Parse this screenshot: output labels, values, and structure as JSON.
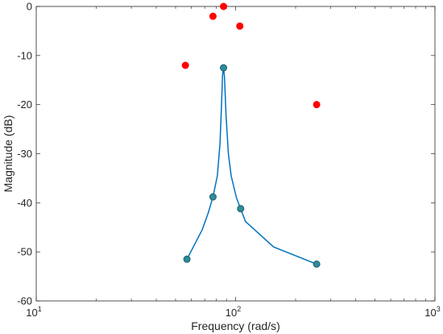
{
  "chart_data": {
    "type": "scatter",
    "xlabel": "Frequency (rad/s)",
    "ylabel": "Magnitude (dB)",
    "xscale": "log",
    "xlim": [
      10,
      1000
    ],
    "ylim": [
      -60,
      0
    ],
    "x_ticks": [
      {
        "value": 10,
        "base": "10",
        "exp": "1"
      },
      {
        "value": 100,
        "base": "10",
        "exp": "2"
      },
      {
        "value": 1000,
        "base": "10",
        "exp": "3"
      }
    ],
    "y_ticks": [
      {
        "value": 0,
        "label": "0"
      },
      {
        "value": -10,
        "label": "-10"
      },
      {
        "value": -20,
        "label": "-20"
      },
      {
        "value": -30,
        "label": "-30"
      },
      {
        "value": -40,
        "label": "-40"
      },
      {
        "value": -50,
        "label": "-50"
      },
      {
        "value": -60,
        "label": "-60"
      }
    ],
    "grid": false,
    "series": [
      {
        "kind": "line",
        "color": "#0072bd",
        "points": [
          {
            "x": 57,
            "y": -51.5
          },
          {
            "x": 68,
            "y": -45.5
          },
          {
            "x": 73,
            "y": -42
          },
          {
            "x": 77,
            "y": -38.8
          },
          {
            "x": 81,
            "y": -34.5
          },
          {
            "x": 83.5,
            "y": -28
          },
          {
            "x": 85,
            "y": -20
          },
          {
            "x": 86,
            "y": -14
          },
          {
            "x": 87,
            "y": -12.5
          },
          {
            "x": 88,
            "y": -14.5
          },
          {
            "x": 89.5,
            "y": -22
          },
          {
            "x": 92,
            "y": -30
          },
          {
            "x": 95,
            "y": -34.5
          },
          {
            "x": 101,
            "y": -39
          },
          {
            "x": 106,
            "y": -41.2
          },
          {
            "x": 112,
            "y": -43.8
          },
          {
            "x": 155,
            "y": -49
          },
          {
            "x": 255,
            "y": -52.5
          }
        ]
      },
      {
        "kind": "markers",
        "color": "#2e8b9a",
        "edge": "#1f5f6e",
        "points": [
          {
            "x": 57,
            "y": -51.5
          },
          {
            "x": 77,
            "y": -38.8
          },
          {
            "x": 87,
            "y": -12.5
          },
          {
            "x": 106,
            "y": -41.2
          },
          {
            "x": 255,
            "y": -52.5
          }
        ]
      },
      {
        "kind": "markers",
        "color": "#ff0000",
        "edge": "#ff0000",
        "points": [
          {
            "x": 56,
            "y": -12
          },
          {
            "x": 77,
            "y": -2
          },
          {
            "x": 87,
            "y": 0
          },
          {
            "x": 105,
            "y": -4
          },
          {
            "x": 255,
            "y": -20
          }
        ]
      }
    ]
  }
}
